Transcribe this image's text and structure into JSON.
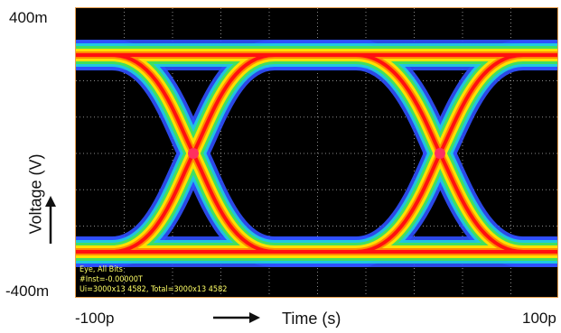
{
  "chart_data": {
    "type": "eye-diagram",
    "xlabel": "Time (s)",
    "ylabel": "Voltage (V)",
    "xlim": [
      "-100p",
      "100p"
    ],
    "ylim": [
      "-400m",
      "400m"
    ],
    "x_ticks": [
      "-100p",
      "100p"
    ],
    "y_ticks": [
      "400m",
      "-400m"
    ],
    "grid": true,
    "legend": "none",
    "annotations": {
      "line1": "Eye, All Bits",
      "line2": "#Inst=-0.00000T",
      "line3": "Ui=3000x13 4582, Total=3000x13 4582"
    },
    "colors": {
      "background": "#000000",
      "density_low": "#3050ff",
      "density_mid": "#ffe000",
      "density_high": "#ff1010",
      "border": "#e8a050"
    }
  }
}
